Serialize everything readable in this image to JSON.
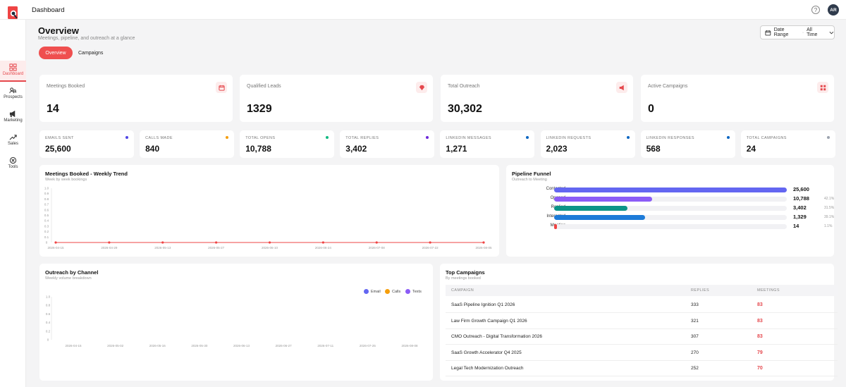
{
  "header": {
    "title": "Dashboard",
    "avatar_initials": "AR",
    "help": "?"
  },
  "sidebar": {
    "items": [
      {
        "label": "Dashboard",
        "icon": "grid-icon"
      },
      {
        "label": "Prospects",
        "icon": "users-search-icon"
      },
      {
        "label": "Marketing",
        "icon": "megaphone-icon"
      },
      {
        "label": "Sales",
        "icon": "trend-icon"
      },
      {
        "label": "Tools",
        "icon": "tools-icon"
      }
    ]
  },
  "page": {
    "title": "Overview",
    "subtitle": "Meetings, pipeline, and outreach at a glance",
    "date_range": {
      "label": "Date Range",
      "value": "All Time"
    },
    "tabs": [
      "Overview",
      "Campaigns"
    ]
  },
  "kpis": [
    {
      "label": "Meetings Booked",
      "value": "14",
      "icon": "calendar-icon"
    },
    {
      "label": "Qualified Leads",
      "value": "1329",
      "icon": "gem-icon"
    },
    {
      "label": "Total Outreach",
      "value": "30,302",
      "icon": "megaphone-icon"
    },
    {
      "label": "Active Campaigns",
      "value": "0",
      "icon": "grid-icon"
    }
  ],
  "stats": [
    {
      "label": "EMAILS SENT",
      "value": "25,600",
      "color": "#4f46e5"
    },
    {
      "label": "CALLS MADE",
      "value": "840",
      "color": "#f59e0b"
    },
    {
      "label": "TOTAL OPENS",
      "value": "10,788",
      "color": "#10b981"
    },
    {
      "label": "TOTAL REPLIES",
      "value": "3,402",
      "color": "#6d28d9"
    },
    {
      "label": "LINKEDIN MESSAGES",
      "value": "1,271",
      "color": "#0a66c2"
    },
    {
      "label": "LINKEDIN REQUESTS",
      "value": "2,023",
      "color": "#0a66c2"
    },
    {
      "label": "LINKEDIN RESPONSES",
      "value": "568",
      "color": "#0a66c2"
    },
    {
      "label": "TOTAL CAMPAIGNS",
      "value": "24",
      "color": "#9ca3af"
    }
  ],
  "weekly_trend": {
    "title": "Meetings Booked - Weekly Trend",
    "subtitle": "Week by week bookings"
  },
  "pipeline": {
    "title": "Pipeline Funnel",
    "subtitle": "Outreach to Meeting",
    "stages": [
      {
        "label": "Contacted",
        "value": "25,600",
        "pct": "",
        "fraction": 1.0,
        "color": "#6366f1"
      },
      {
        "label": "Opened",
        "value": "10,788",
        "pct": "42.1%",
        "fraction": 0.421,
        "color": "#8b5cf6"
      },
      {
        "label": "Replied",
        "value": "3,402",
        "pct": "31.5%",
        "fraction": 0.315,
        "color": "#0d9488"
      },
      {
        "label": "Interested",
        "value": "1,329",
        "pct": "39.1%",
        "fraction": 0.391,
        "color": "#1d7bd8"
      },
      {
        "label": "Meeting",
        "value": "14",
        "pct": "1.1%",
        "fraction": 0.011,
        "color": "#ef4444"
      }
    ]
  },
  "channels": {
    "title": "Outreach by Channel",
    "subtitle": "Weekly volume breakdown",
    "legend": [
      {
        "name": "Email",
        "color": "#6366f1"
      },
      {
        "name": "Calls",
        "color": "#f59e0b"
      },
      {
        "name": "Texts",
        "color": "#8b5cf6"
      }
    ]
  },
  "top_campaigns": {
    "title": "Top Campaigns",
    "subtitle": "By meetings booked",
    "columns": [
      "CAMPAIGN",
      "REPLIES",
      "MEETINGS"
    ],
    "rows": [
      {
        "name": "SaaS Pipeline Ignition Q1 2026",
        "replies": "333",
        "meetings": "83"
      },
      {
        "name": "Law Firm Growth Campaign Q1 2026",
        "replies": "321",
        "meetings": "83"
      },
      {
        "name": "CMO Outreach - Digital Transformation 2026",
        "replies": "307",
        "meetings": "83"
      },
      {
        "name": "SaaS Growth Accelerator Q4 2025",
        "replies": "270",
        "meetings": "79"
      },
      {
        "name": "Legal Tech Modernization Outreach",
        "replies": "252",
        "meetings": "70"
      }
    ]
  },
  "chart_data": [
    {
      "type": "line",
      "title": "Meetings Booked - Weekly Trend",
      "subtitle": "Week by week bookings",
      "x": [
        "2026-04-15",
        "2026-04-29",
        "2026-05-13",
        "2026-05-27",
        "2026-06-10",
        "2026-06-24",
        "2026-07-08",
        "2026-07-22",
        "2026-08-05"
      ],
      "x_tick_labels": [
        "2026-04-15",
        "2026-04-29",
        "2026-05-13",
        "2026-05-27",
        "2026-06-10",
        "2026-06-24",
        "2026-07-08",
        "2026-07-22",
        "2026-08-05"
      ],
      "series": [
        {
          "values": [
            0,
            0,
            0,
            0,
            0,
            0,
            0,
            0,
            0
          ],
          "color": "#ef4444"
        }
      ],
      "ylim": [
        0,
        1.0
      ],
      "y_ticks": [
        "0",
        "0.1",
        "0.2",
        "0.3",
        "0.4",
        "0.5",
        "0.6",
        "0.7",
        "0.8",
        "0.9",
        "1.0"
      ],
      "grid": false
    },
    {
      "type": "line",
      "title": "Outreach by Channel",
      "subtitle": "Weekly volume breakdown",
      "x_tick_labels": [
        "2026-04-15",
        "2026-05-02",
        "2026-05-16",
        "2026-05-30",
        "2026-06-13",
        "2026-06-27",
        "2026-07-11",
        "2026-07-25",
        "2026-08-08"
      ],
      "series": [
        {
          "name": "Email",
          "values": [],
          "color": "#6366f1"
        },
        {
          "name": "Calls",
          "values": [],
          "color": "#f59e0b"
        },
        {
          "name": "Texts",
          "values": [],
          "color": "#8b5cf6"
        }
      ],
      "ylim": [
        0,
        1.0
      ],
      "y_ticks": [
        "0",
        "0.2",
        "0.4",
        "0.6",
        "0.8",
        "1.0"
      ],
      "legend": "top-right",
      "grid": false
    },
    {
      "type": "bar",
      "title": "Pipeline Funnel",
      "subtitle": "Outreach to Meeting",
      "categories": [
        "Contacted",
        "Opened",
        "Replied",
        "Interested",
        "Meeting"
      ],
      "values": [
        25600,
        10788,
        3402,
        1329,
        14
      ],
      "orientation": "horizontal"
    }
  ]
}
